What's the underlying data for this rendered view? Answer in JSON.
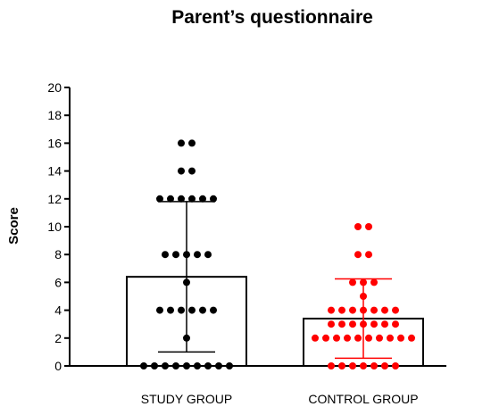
{
  "chart_data": {
    "type": "bar",
    "title": "Parent’s questionnaire",
    "xlabel": "",
    "ylabel": "Score",
    "ylim": [
      0,
      20
    ],
    "yticks": [
      0,
      2,
      4,
      6,
      8,
      10,
      12,
      14,
      16,
      18,
      20
    ],
    "grid": false,
    "categories": [
      "STUDY GROUP",
      "CONTROL GROUP"
    ],
    "series": [
      {
        "category": "STUDY GROUP",
        "mean": 6.4,
        "sd": 5.4,
        "color": "#000000",
        "points": [
          {
            "y": 0,
            "n": 9
          },
          {
            "y": 2,
            "n": 1
          },
          {
            "y": 4,
            "n": 6
          },
          {
            "y": 6,
            "n": 1
          },
          {
            "y": 8,
            "n": 5
          },
          {
            "y": 12,
            "n": 6
          },
          {
            "y": 14,
            "n": 2
          },
          {
            "y": 16,
            "n": 2
          }
        ]
      },
      {
        "category": "CONTROL GROUP",
        "mean": 3.4,
        "sd": 2.85,
        "color": "#ff0000",
        "points": [
          {
            "y": 0,
            "n": 7
          },
          {
            "y": 2,
            "n": 10
          },
          {
            "y": 3,
            "n": 7
          },
          {
            "y": 4,
            "n": 7
          },
          {
            "y": 5,
            "n": 1
          },
          {
            "y": 6,
            "n": 3
          },
          {
            "y": 8,
            "n": 2
          },
          {
            "y": 10,
            "n": 2
          }
        ]
      }
    ]
  }
}
